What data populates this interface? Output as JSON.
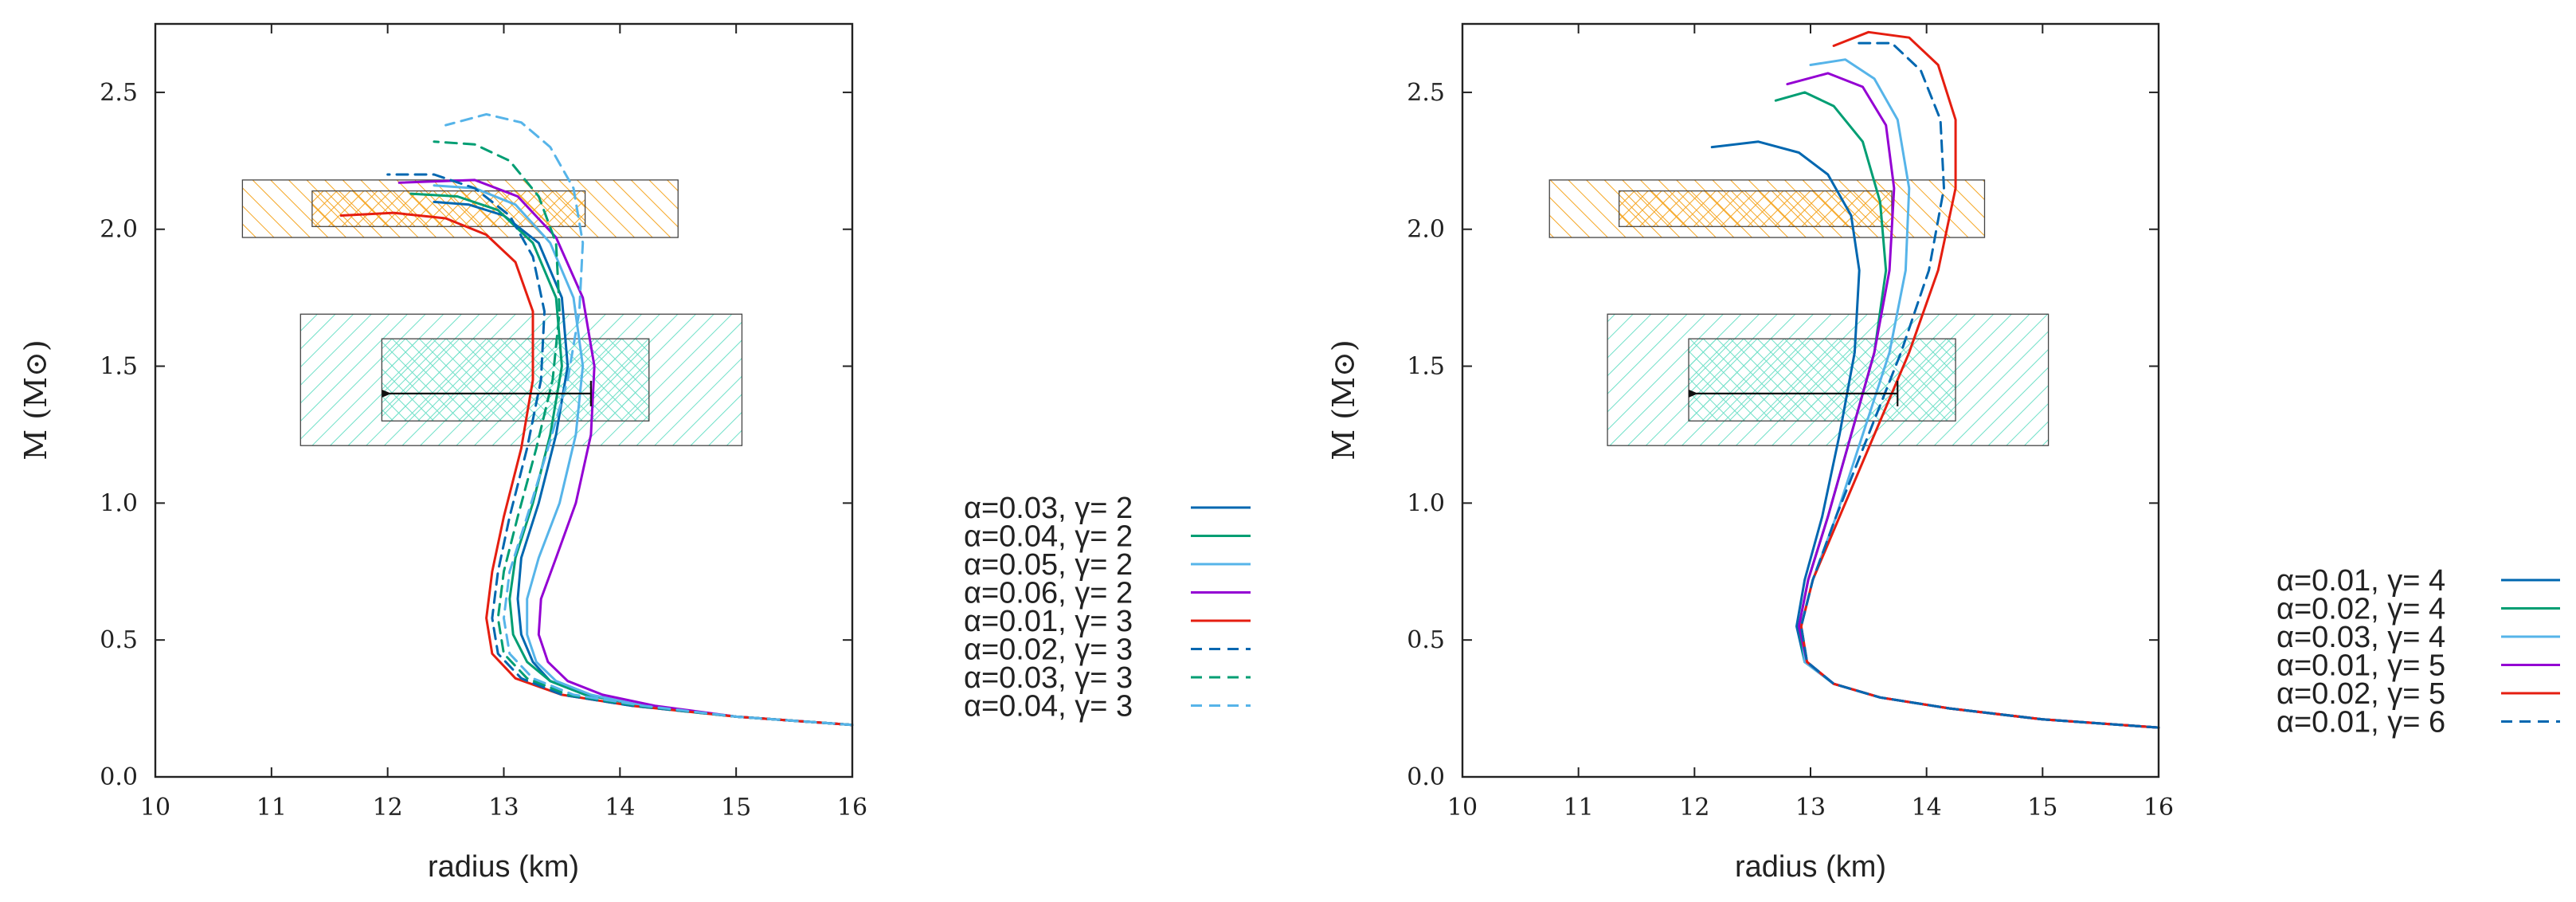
{
  "chart_data": [
    {
      "type": "line",
      "panel": "left",
      "xlabel": "radius (km)",
      "ylabel": "M (M⊙)",
      "xlim": [
        10,
        16
      ],
      "ylim": [
        0,
        2.75
      ],
      "xticks": [
        "10",
        "11",
        "12",
        "13",
        "14",
        "15",
        "16"
      ],
      "yticks": [
        "0.0",
        "0.5",
        "1.0",
        "1.5",
        "2.0",
        "2.5"
      ],
      "regions": [
        {
          "name": "orange-outer",
          "x": [
            10.75,
            14.5
          ],
          "y": [
            1.97,
            2.18
          ],
          "color": "#f5a623",
          "hatch": "single"
        },
        {
          "name": "orange-inner",
          "x": [
            11.35,
            13.7
          ],
          "y": [
            2.01,
            2.14
          ],
          "color": "#f5a623",
          "hatch": "cross"
        },
        {
          "name": "cyan-outer",
          "x": [
            11.25,
            15.05
          ],
          "y": [
            1.21,
            1.69
          ],
          "color": "#6fe0c8",
          "hatch": "single"
        },
        {
          "name": "cyan-inner",
          "x": [
            11.95,
            14.25
          ],
          "y": [
            1.3,
            1.6
          ],
          "color": "#6fe0c8",
          "hatch": "cross"
        }
      ],
      "arrow": {
        "from": [
          13.75,
          1.4
        ],
        "to": [
          11.95,
          1.4
        ]
      },
      "series": [
        {
          "name": "α=0.03, γ= 2",
          "color": "#0067b0",
          "dash": "solid",
          "x": [
            16,
            15,
            14.2,
            13.7,
            13.4,
            13.25,
            13.15,
            13.12,
            13.15,
            13.3,
            13.45,
            13.55,
            13.5,
            13.3,
            13.0,
            12.7,
            12.4
          ],
          "y": [
            0.19,
            0.22,
            0.26,
            0.3,
            0.35,
            0.42,
            0.52,
            0.65,
            0.8,
            1.0,
            1.25,
            1.5,
            1.75,
            1.95,
            2.05,
            2.09,
            2.1
          ]
        },
        {
          "name": "α=0.04, γ= 2",
          "color": "#009e73",
          "dash": "solid",
          "x": [
            16,
            15,
            14.2,
            13.7,
            13.4,
            13.2,
            13.08,
            13.05,
            13.1,
            13.25,
            13.4,
            13.5,
            13.45,
            13.25,
            12.95,
            12.6,
            12.2
          ],
          "y": [
            0.19,
            0.22,
            0.26,
            0.3,
            0.35,
            0.42,
            0.52,
            0.65,
            0.8,
            1.0,
            1.25,
            1.5,
            1.75,
            1.95,
            2.07,
            2.12,
            2.13
          ]
        },
        {
          "name": "α=0.05, γ= 2",
          "color": "#56b4e9",
          "dash": "solid",
          "x": [
            16,
            15,
            14.2,
            13.75,
            13.45,
            13.28,
            13.2,
            13.2,
            13.3,
            13.48,
            13.62,
            13.68,
            13.6,
            13.4,
            13.1,
            12.75,
            12.4
          ],
          "y": [
            0.19,
            0.22,
            0.26,
            0.3,
            0.35,
            0.42,
            0.52,
            0.65,
            0.8,
            1.0,
            1.25,
            1.5,
            1.75,
            1.95,
            2.09,
            2.15,
            2.16
          ]
        },
        {
          "name": "α=0.06, γ= 2",
          "color": "#9400d3",
          "dash": "solid",
          "x": [
            16,
            15,
            14.3,
            13.85,
            13.55,
            13.38,
            13.3,
            13.32,
            13.45,
            13.62,
            13.75,
            13.78,
            13.68,
            13.45,
            13.12,
            12.75,
            12.1
          ],
          "y": [
            0.19,
            0.22,
            0.26,
            0.3,
            0.35,
            0.42,
            0.52,
            0.65,
            0.8,
            1.0,
            1.25,
            1.5,
            1.75,
            1.97,
            2.12,
            2.18,
            2.17
          ]
        },
        {
          "name": "α=0.01, γ= 3",
          "color": "#e51e10",
          "dash": "solid",
          "x": [
            16,
            15,
            14.1,
            13.5,
            13.1,
            12.9,
            12.85,
            12.9,
            13.0,
            13.15,
            13.25,
            13.25,
            13.1,
            12.85,
            12.5,
            12.05,
            11.6
          ],
          "y": [
            0.19,
            0.22,
            0.26,
            0.3,
            0.36,
            0.45,
            0.58,
            0.75,
            0.95,
            1.2,
            1.45,
            1.7,
            1.88,
            1.98,
            2.04,
            2.06,
            2.05
          ]
        },
        {
          "name": "α=0.02, γ= 3",
          "color": "#0067b0",
          "dash": "dash",
          "x": [
            16,
            15,
            14.1,
            13.5,
            13.15,
            12.95,
            12.9,
            12.95,
            13.05,
            13.2,
            13.32,
            13.35,
            13.25,
            13.05,
            12.75,
            12.4,
            12.0
          ],
          "y": [
            0.19,
            0.22,
            0.26,
            0.3,
            0.36,
            0.45,
            0.58,
            0.75,
            0.95,
            1.2,
            1.45,
            1.7,
            1.9,
            2.05,
            2.15,
            2.2,
            2.2
          ]
        },
        {
          "name": "α=0.03, γ= 3",
          "color": "#009e73",
          "dash": "dash",
          "x": [
            16,
            15,
            14.15,
            13.55,
            13.2,
            13.0,
            12.95,
            13.0,
            13.12,
            13.28,
            13.42,
            13.48,
            13.45,
            13.3,
            13.05,
            12.75,
            12.4
          ],
          "y": [
            0.19,
            0.22,
            0.26,
            0.3,
            0.36,
            0.45,
            0.58,
            0.75,
            0.95,
            1.2,
            1.45,
            1.7,
            1.95,
            2.12,
            2.25,
            2.31,
            2.32
          ]
        },
        {
          "name": "α=0.04, γ= 3",
          "color": "#56b4e9",
          "dash": "dash",
          "x": [
            16,
            15,
            14.2,
            13.6,
            13.25,
            13.05,
            13.0,
            13.05,
            13.2,
            13.38,
            13.55,
            13.65,
            13.68,
            13.6,
            13.4,
            13.15,
            12.85,
            12.5
          ],
          "y": [
            0.19,
            0.22,
            0.26,
            0.3,
            0.36,
            0.45,
            0.58,
            0.75,
            0.95,
            1.2,
            1.45,
            1.7,
            1.95,
            2.15,
            2.3,
            2.39,
            2.42,
            2.38
          ]
        }
      ]
    },
    {
      "type": "line",
      "panel": "right",
      "xlabel": "radius (km)",
      "ylabel": "M (M⊙)",
      "xlim": [
        10,
        16
      ],
      "ylim": [
        0,
        2.75
      ],
      "xticks": [
        "10",
        "11",
        "12",
        "13",
        "14",
        "15",
        "16"
      ],
      "yticks": [
        "0.0",
        "0.5",
        "1.0",
        "1.5",
        "2.0",
        "2.5"
      ],
      "regions": [
        {
          "name": "orange-outer",
          "x": [
            10.75,
            14.5
          ],
          "y": [
            1.97,
            2.18
          ],
          "color": "#f5a623",
          "hatch": "single"
        },
        {
          "name": "orange-inner",
          "x": [
            11.35,
            13.7
          ],
          "y": [
            2.01,
            2.14
          ],
          "color": "#f5a623",
          "hatch": "cross"
        },
        {
          "name": "cyan-outer",
          "x": [
            11.25,
            15.05
          ],
          "y": [
            1.21,
            1.69
          ],
          "color": "#6fe0c8",
          "hatch": "single"
        },
        {
          "name": "cyan-inner",
          "x": [
            11.95,
            14.25
          ],
          "y": [
            1.3,
            1.6
          ],
          "color": "#6fe0c8",
          "hatch": "cross"
        }
      ],
      "arrow": {
        "from": [
          13.75,
          1.4
        ],
        "to": [
          11.95,
          1.4
        ]
      },
      "series": [
        {
          "name": "α=0.01, γ= 4",
          "color": "#0067b0",
          "dash": "solid",
          "x": [
            16,
            15,
            14.2,
            13.6,
            13.2,
            12.95,
            12.88,
            12.95,
            13.1,
            13.25,
            13.38,
            13.42,
            13.35,
            13.15,
            12.9,
            12.55,
            12.15
          ],
          "y": [
            0.18,
            0.21,
            0.25,
            0.29,
            0.34,
            0.42,
            0.55,
            0.72,
            0.95,
            1.25,
            1.55,
            1.85,
            2.05,
            2.2,
            2.28,
            2.32,
            2.3
          ]
        },
        {
          "name": "α=0.02, γ= 4",
          "color": "#009e73",
          "dash": "solid",
          "x": [
            16,
            15,
            14.2,
            13.6,
            13.2,
            12.95,
            12.9,
            12.98,
            13.15,
            13.35,
            13.55,
            13.65,
            13.6,
            13.45,
            13.2,
            12.95,
            12.7
          ],
          "y": [
            0.18,
            0.21,
            0.25,
            0.29,
            0.34,
            0.42,
            0.55,
            0.72,
            0.95,
            1.25,
            1.55,
            1.85,
            2.1,
            2.32,
            2.45,
            2.5,
            2.47
          ]
        },
        {
          "name": "α=0.03, γ= 4",
          "color": "#56b4e9",
          "dash": "solid",
          "x": [
            16,
            15,
            14.2,
            13.6,
            13.2,
            12.95,
            12.92,
            13.02,
            13.22,
            13.45,
            13.68,
            13.82,
            13.85,
            13.75,
            13.55,
            13.3,
            13.0
          ],
          "y": [
            0.18,
            0.21,
            0.25,
            0.29,
            0.34,
            0.42,
            0.55,
            0.72,
            0.95,
            1.25,
            1.55,
            1.85,
            2.15,
            2.4,
            2.55,
            2.62,
            2.6
          ]
        },
        {
          "name": "α=0.01, γ= 5",
          "color": "#9400d3",
          "dash": "solid",
          "x": [
            16,
            15,
            14.2,
            13.6,
            13.2,
            12.97,
            12.9,
            12.98,
            13.15,
            13.35,
            13.55,
            13.68,
            13.72,
            13.65,
            13.45,
            13.15,
            12.8
          ],
          "y": [
            0.18,
            0.21,
            0.25,
            0.29,
            0.34,
            0.42,
            0.55,
            0.72,
            0.95,
            1.25,
            1.55,
            1.85,
            2.15,
            2.38,
            2.52,
            2.57,
            2.53
          ]
        },
        {
          "name": "α=0.02, γ= 5",
          "color": "#e51e10",
          "dash": "solid",
          "x": [
            16,
            15,
            14.2,
            13.6,
            13.2,
            12.97,
            12.92,
            13.02,
            13.25,
            13.55,
            13.85,
            14.1,
            14.25,
            14.25,
            14.1,
            13.85,
            13.5,
            13.2
          ],
          "y": [
            0.18,
            0.21,
            0.25,
            0.29,
            0.34,
            0.42,
            0.55,
            0.72,
            0.95,
            1.25,
            1.55,
            1.85,
            2.15,
            2.4,
            2.6,
            2.7,
            2.72,
            2.67
          ]
        },
        {
          "name": "α=0.01, γ= 6",
          "color": "#0067b0",
          "dash": "dash",
          "x": [
            16,
            15,
            14.2,
            13.6,
            13.2,
            12.97,
            12.92,
            13.02,
            13.22,
            13.5,
            13.78,
            14.02,
            14.15,
            14.12,
            13.95,
            13.7,
            13.4
          ],
          "y": [
            0.18,
            0.21,
            0.25,
            0.29,
            0.34,
            0.42,
            0.55,
            0.72,
            0.95,
            1.25,
            1.55,
            1.85,
            2.15,
            2.4,
            2.58,
            2.68,
            2.68
          ]
        }
      ]
    }
  ]
}
